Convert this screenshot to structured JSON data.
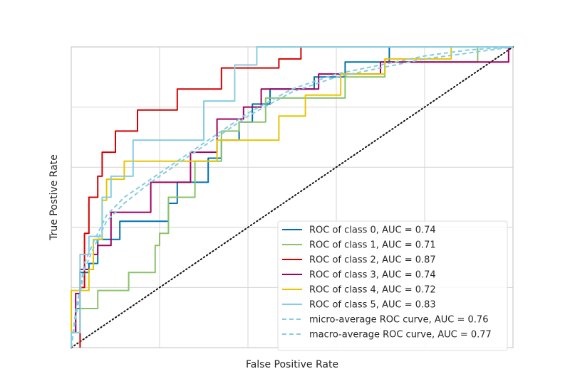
{
  "chart_data": {
    "type": "line",
    "title": "",
    "xlabel": "False Positive Rate",
    "ylabel": "True Postive Rate",
    "xlim": [
      0,
      1
    ],
    "ylim": [
      0,
      1
    ],
    "grid": true,
    "tick_labels_visible": false,
    "legend_position": "lower-right",
    "diagonal": {
      "x": [
        0,
        1
      ],
      "y": [
        0,
        1
      ],
      "color": "#111111",
      "style": "dotted"
    },
    "series": [
      {
        "name": "ROC of class 0, AUC = 0.74",
        "color": "#0072B2",
        "style": "solid",
        "x": [
          0,
          0.0,
          0.01,
          0.01,
          0.02,
          0.02,
          0.04,
          0.04,
          0.06,
          0.06,
          0.11,
          0.11,
          0.14,
          0.14,
          0.22,
          0.22,
          0.24,
          0.24,
          0.31,
          0.31,
          0.34,
          0.34,
          0.38,
          0.38,
          0.41,
          0.41,
          0.45,
          0.45,
          0.49,
          0.49,
          0.55,
          0.55,
          0.62,
          0.62,
          0.72,
          0.72,
          1.0
        ],
        "y": [
          0,
          0.05,
          0.05,
          0.13,
          0.13,
          0.25,
          0.25,
          0.28,
          0.28,
          0.36,
          0.36,
          0.42,
          0.42,
          0.42,
          0.42,
          0.48,
          0.48,
          0.55,
          0.55,
          0.63,
          0.63,
          0.69,
          0.69,
          0.75,
          0.75,
          0.81,
          0.81,
          0.86,
          0.86,
          0.86,
          0.86,
          0.9,
          0.9,
          0.95,
          0.95,
          1.0,
          1.0
        ]
      },
      {
        "name": "ROC of class 1, AUC = 0.71",
        "color": "#8AC26A",
        "style": "solid",
        "x": [
          0,
          0.0,
          0.02,
          0.02,
          0.06,
          0.06,
          0.13,
          0.13,
          0.19,
          0.19,
          0.2,
          0.2,
          0.22,
          0.22,
          0.28,
          0.28,
          0.34,
          0.34,
          0.38,
          0.38,
          0.44,
          0.44,
          0.62,
          0.62,
          0.71,
          0.71,
          0.92,
          0.92,
          1.0
        ],
        "y": [
          0,
          0.05,
          0.05,
          0.13,
          0.13,
          0.19,
          0.19,
          0.25,
          0.25,
          0.34,
          0.34,
          0.38,
          0.38,
          0.5,
          0.5,
          0.62,
          0.62,
          0.72,
          0.72,
          0.75,
          0.75,
          0.83,
          0.83,
          0.9,
          0.9,
          0.95,
          0.95,
          1.0,
          1.0
        ]
      },
      {
        "name": "ROC of class 2, AUC = 0.87",
        "color": "#D40000",
        "style": "solid",
        "x": [
          0.02,
          0.02,
          0.03,
          0.03,
          0.04,
          0.04,
          0.06,
          0.06,
          0.07,
          0.07,
          0.1,
          0.1,
          0.15,
          0.15,
          0.24,
          0.24,
          0.34,
          0.34,
          0.47,
          0.47,
          0.52,
          0.52,
          1.0
        ],
        "y": [
          0,
          0.2,
          0.2,
          0.38,
          0.38,
          0.5,
          0.5,
          0.57,
          0.57,
          0.65,
          0.65,
          0.72,
          0.72,
          0.79,
          0.79,
          0.86,
          0.86,
          0.93,
          0.93,
          0.96,
          0.96,
          1.0,
          1.0
        ]
      },
      {
        "name": "ROC of class 3, AUC = 0.74",
        "color": "#A0005F",
        "style": "solid",
        "x": [
          0,
          0.0,
          0.01,
          0.01,
          0.02,
          0.02,
          0.05,
          0.05,
          0.06,
          0.06,
          0.09,
          0.09,
          0.18,
          0.18,
          0.27,
          0.27,
          0.33,
          0.33,
          0.39,
          0.39,
          0.43,
          0.43,
          0.56,
          0.56,
          0.7,
          0.7,
          0.99,
          0.99
        ],
        "y": [
          0,
          0.05,
          0.05,
          0.18,
          0.18,
          0.26,
          0.26,
          0.31,
          0.31,
          0.34,
          0.34,
          0.45,
          0.45,
          0.55,
          0.55,
          0.65,
          0.65,
          0.76,
          0.76,
          0.8,
          0.8,
          0.86,
          0.86,
          0.91,
          0.91,
          0.95,
          0.95,
          1.0
        ]
      },
      {
        "name": "ROC of class 4, AUC = 0.72",
        "color": "#E5C500",
        "style": "solid",
        "x": [
          0,
          0.0,
          0.04,
          0.04,
          0.05,
          0.05,
          0.07,
          0.07,
          0.08,
          0.08,
          0.12,
          0.12,
          0.22,
          0.22,
          0.33,
          0.33,
          0.47,
          0.47,
          0.53,
          0.53,
          0.61,
          0.61,
          0.71,
          0.71,
          0.86,
          0.86,
          1.0
        ],
        "y": [
          0,
          0.19,
          0.19,
          0.26,
          0.26,
          0.36,
          0.36,
          0.49,
          0.49,
          0.56,
          0.56,
          0.62,
          0.62,
          0.62,
          0.62,
          0.69,
          0.69,
          0.77,
          0.77,
          0.84,
          0.84,
          0.91,
          0.91,
          0.96,
          0.96,
          1.0,
          1.0
        ]
      },
      {
        "name": "ROC of class 5, AUC = 0.83",
        "color": "#87CCE0",
        "style": "solid",
        "x": [
          0,
          0.0,
          0.02,
          0.02,
          0.04,
          0.04,
          0.07,
          0.07,
          0.09,
          0.09,
          0.14,
          0.14,
          0.3,
          0.3,
          0.37,
          0.37,
          0.42,
          0.42,
          0.69,
          0.69,
          1.0
        ],
        "y": [
          0,
          0.05,
          0.05,
          0.31,
          0.31,
          0.37,
          0.37,
          0.5,
          0.5,
          0.57,
          0.57,
          0.69,
          0.69,
          0.82,
          0.82,
          0.94,
          0.94,
          1.0,
          1.0,
          1.0,
          1.0
        ]
      },
      {
        "name": "micro-average ROC curve, AUC = 0.76",
        "color": "#87CCE0",
        "style": "dashed",
        "x": [
          0,
          0.01,
          0.03,
          0.05,
          0.08,
          0.12,
          0.18,
          0.25,
          0.32,
          0.4,
          0.5,
          0.6,
          0.7,
          0.8,
          0.9,
          1.0
        ],
        "y": [
          0,
          0.12,
          0.28,
          0.35,
          0.44,
          0.5,
          0.56,
          0.63,
          0.7,
          0.78,
          0.86,
          0.91,
          0.94,
          0.97,
          0.99,
          1.0
        ]
      },
      {
        "name": "macro-average ROC curve, AUC = 0.77",
        "color": "#87CCE0",
        "style": "dashed",
        "x": [
          0,
          0.01,
          0.03,
          0.05,
          0.08,
          0.12,
          0.18,
          0.25,
          0.32,
          0.4,
          0.5,
          0.6,
          0.7,
          0.8,
          0.9,
          1.0
        ],
        "y": [
          0,
          0.1,
          0.26,
          0.33,
          0.42,
          0.48,
          0.55,
          0.62,
          0.69,
          0.77,
          0.85,
          0.9,
          0.93,
          0.96,
          0.98,
          1.0
        ]
      }
    ]
  }
}
